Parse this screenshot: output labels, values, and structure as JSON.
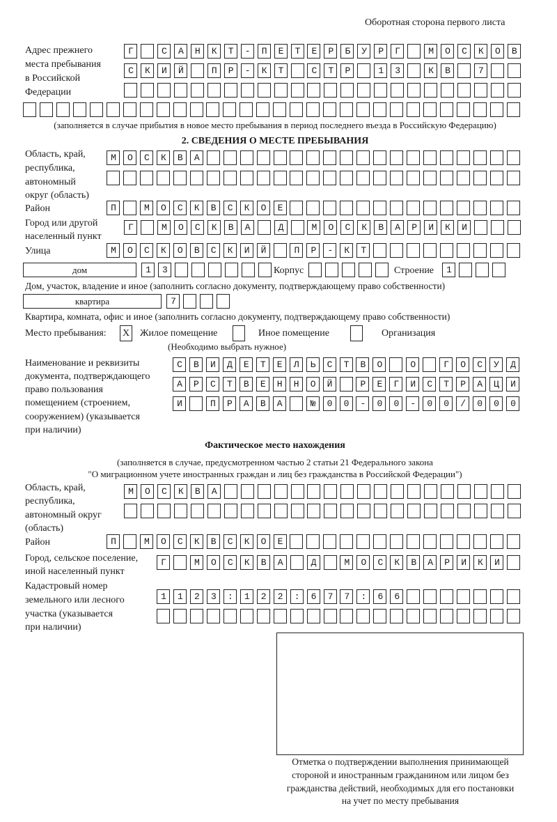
{
  "header": "Оборотная сторона первого листа",
  "prev_address": {
    "label": [
      "Адрес прежнего",
      "места пребывания",
      "в Российской",
      "Федерации"
    ],
    "rows": [
      "Г САНКТ-ПЕТЕРБУРГ МОСКОВ",
      "СКИЙ ПР-КТ СТР 13 КВ 7",
      "",
      ""
    ],
    "note": "(заполняется в случае прибытия в новое место пребывания в период последнего въезда в Российскую Федерацию)"
  },
  "section2": {
    "title": "2. СВЕДЕНИЯ О МЕСТЕ ПРЕБЫВАНИЯ",
    "region_label": [
      "Область, край,",
      "республика,",
      "автономный",
      "округ (область)"
    ],
    "region_rows": [
      "МОСКВА",
      ""
    ],
    "district_label": "Район",
    "district": "П МОСКВСКОЕ",
    "city_label": [
      "Город или другой",
      "населенный пункт"
    ],
    "city": "Г МОСКВА Д МОСКВАРИКИ",
    "street_label": "Улица",
    "street": "МОСКОВСКИЙ ПР-КТ",
    "house_type": "дом",
    "house_number": "13",
    "korpus_label": "Корпус",
    "korpus": "",
    "stroenie_label": "Строение",
    "stroenie": "1",
    "house_note": "Дом, участок, владение и иное (заполнить согласно документу, подтверждающему право собственности)",
    "apt_type": "квартира",
    "apt_number": "7",
    "apt_note": "Квартира, комната, офис и иное (заполнить согласно документу, подтверждающему право собственности)",
    "stay_place_label": "Место пребывания:",
    "stay_options": [
      {
        "label": "Жилое помещение",
        "mark": "X"
      },
      {
        "label": "Иное помещение",
        "mark": ""
      },
      {
        "label": "Организация",
        "mark": ""
      }
    ],
    "stay_note": "(Необходимо выбрать нужное)",
    "doc_label": [
      "Наименование и реквизиты",
      "документа, подтверждающего",
      "право пользования",
      "помещением (строением,",
      "сооружением) (указывается",
      "при наличии)"
    ],
    "doc_rows": [
      "СВИДЕТЕЛЬСТВО О ГОСУД",
      "АРСТВЕННОЙ РЕГИСТРАЦИ",
      "И ПРАВА №00-00-00/000"
    ]
  },
  "actual": {
    "title": "Фактическое место нахождения",
    "note": [
      "(заполняется в случае, предусмотренном частью 2 статьи 21 Федерального закона",
      "\"О миграционном учете иностранных граждан и лиц без гражданства в Российской Федерации\")"
    ],
    "region_label": [
      "Область, край,",
      "республика,",
      "автономный округ",
      "(область)"
    ],
    "region_rows": [
      "МОСКВА",
      ""
    ],
    "district_label": "Район",
    "district": "П МОСКВСКОЕ",
    "city_label": [
      "Город, сельское поселение,",
      "иной населенный пункт"
    ],
    "city": "Г МОСКВА Д МОСКВАРИКИ",
    "cadastre_label": [
      "Кадастровый номер",
      "земельного или лесного",
      "участка (указывается",
      "при наличии)"
    ],
    "cadastre_rows": [
      "1123:122:677:66",
      ""
    ]
  },
  "stamp_caption": [
    "Отметка о подтверждении выполнения принимающей",
    "стороной и иностранным гражданином или лицом без",
    "гражданства действий, необходимых для его постановки",
    "на учет по месту пребывания"
  ]
}
